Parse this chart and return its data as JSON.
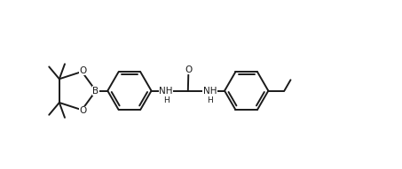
{
  "bg_color": "#ffffff",
  "line_color": "#1a1a1a",
  "line_width": 1.4,
  "font_size": 7.5,
  "fig_width": 4.53,
  "fig_height": 1.91,
  "xlim": [
    0,
    9.5
  ],
  "ylim": [
    0,
    4.0
  ]
}
